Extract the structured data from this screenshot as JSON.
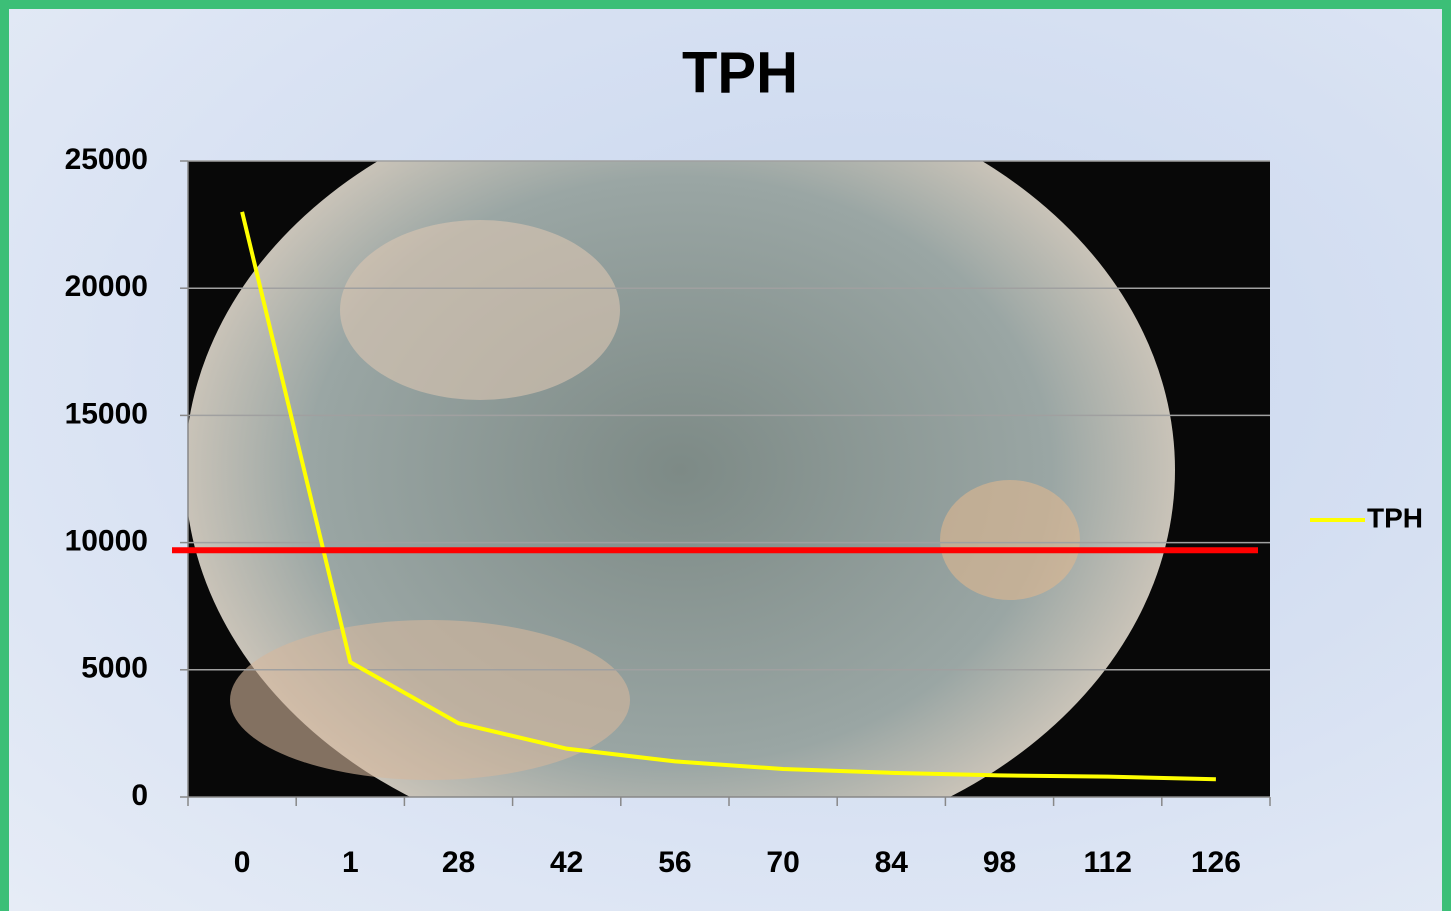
{
  "chart_data": {
    "type": "line",
    "title": "TPH",
    "categories": [
      "0",
      "1",
      "28",
      "42",
      "56",
      "70",
      "84",
      "98",
      "112",
      "126"
    ],
    "series": [
      {
        "name": "TPH",
        "color": "#ffff00",
        "values": [
          23000,
          5300,
          2900,
          1900,
          1400,
          1100,
          950,
          850,
          800,
          700
        ]
      }
    ],
    "reference_line": {
      "value": 9700,
      "color": "#ff0000"
    },
    "ylim": [
      0,
      25000
    ],
    "yticks": [
      0,
      5000,
      10000,
      15000,
      20000,
      25000
    ],
    "grid": true,
    "legend": "right"
  }
}
